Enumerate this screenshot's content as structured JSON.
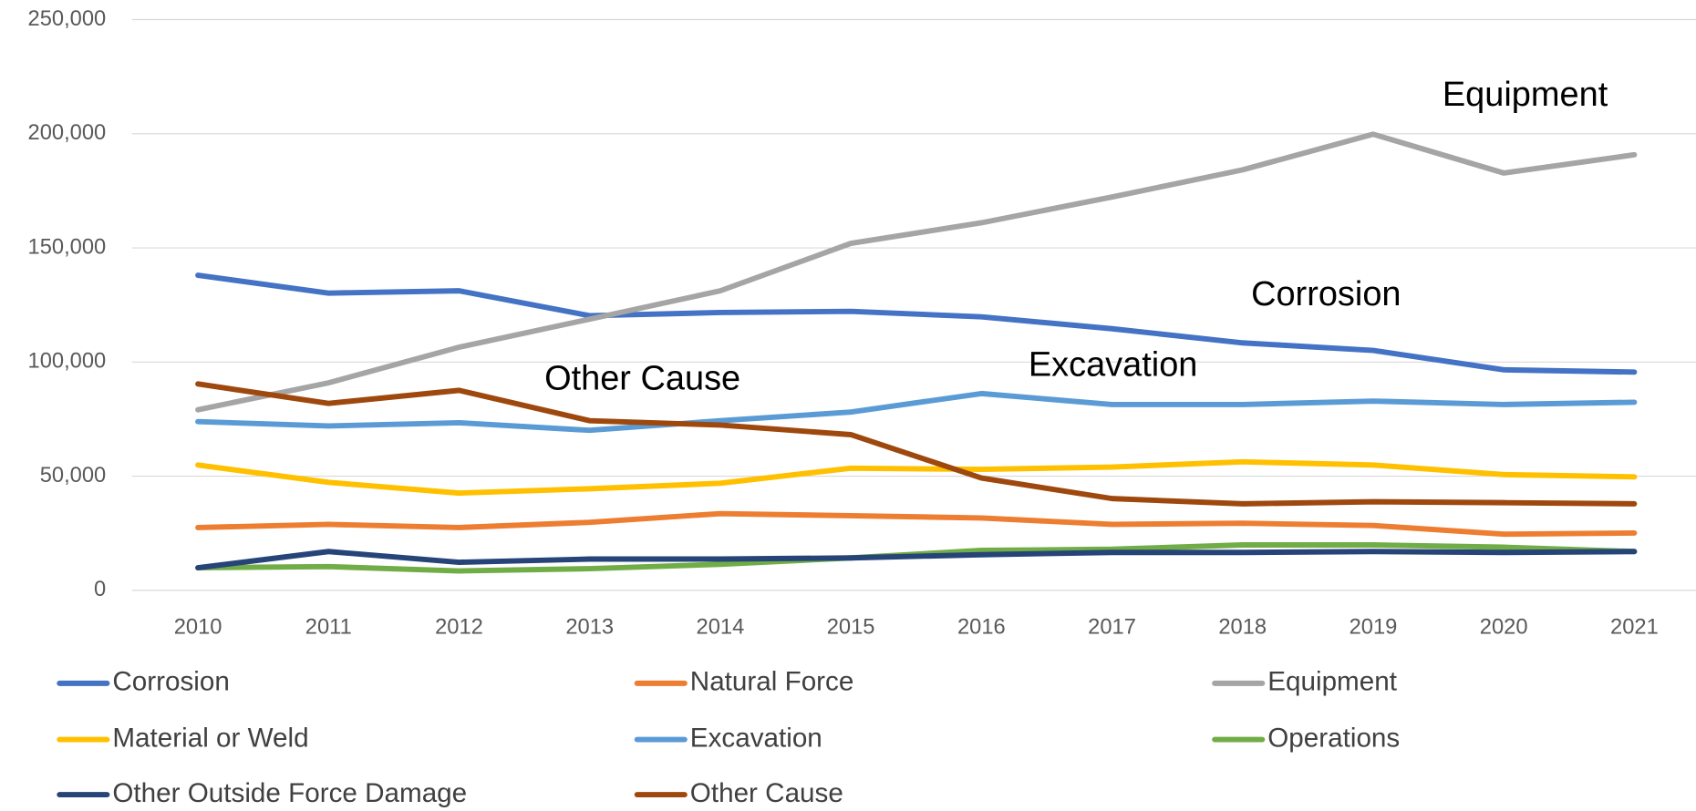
{
  "chart_data": {
    "type": "line",
    "categories": [
      "2010",
      "2011",
      "2012",
      "2013",
      "2014",
      "2015",
      "2016",
      "2017",
      "2018",
      "2019",
      "2020",
      "2021"
    ],
    "ylim": [
      0,
      250000
    ],
    "yticks": [
      0,
      {
        "value": 50000,
        "label": "50,000"
      },
      {
        "value": 100000,
        "label": "100,000"
      },
      {
        "value": 150000,
        "label": "150,000"
      },
      {
        "value": 200000,
        "label": "200,000"
      },
      {
        "value": 250000,
        "label": "250,000"
      }
    ],
    "grid": true,
    "legend": "bottom",
    "annotations": [
      "Equipment",
      "Corrosion",
      "Excavation",
      "Other Cause"
    ],
    "series": [
      {
        "name": "Corrosion",
        "color": "#4472c4",
        "values": [
          138000,
          130200,
          131200,
          120300,
          121700,
          122200,
          119800,
          114600,
          108400,
          105100,
          96600,
          95600
        ]
      },
      {
        "name": "Natural Force",
        "color": "#ed7d31",
        "values": [
          27500,
          28900,
          27500,
          29800,
          33600,
          32700,
          31700,
          28900,
          29400,
          28400,
          24600,
          25100
        ]
      },
      {
        "name": "Equipment",
        "color": "#a5a5a5",
        "values": [
          79100,
          90900,
          106500,
          118800,
          131200,
          152000,
          161000,
          172300,
          184200,
          199800,
          182800,
          190800
        ]
      },
      {
        "name": "Material or Weld",
        "color": "#ffc000",
        "values": [
          54900,
          47300,
          42600,
          44500,
          46900,
          53500,
          53000,
          54000,
          56300,
          54900,
          50700,
          49700
        ]
      },
      {
        "name": "Excavation",
        "color": "#5b9bd5",
        "values": [
          73900,
          72000,
          73400,
          70100,
          74300,
          78100,
          86200,
          81400,
          81400,
          82900,
          81400,
          82400
        ]
      },
      {
        "name": "Operations",
        "color": "#70ad47",
        "values": [
          9900,
          10400,
          8500,
          9500,
          11400,
          14200,
          17500,
          18000,
          19900,
          19900,
          18900,
          17000
        ]
      },
      {
        "name": "Other Outside Force Damage",
        "color": "#264478",
        "values": [
          9900,
          17000,
          12300,
          13700,
          13700,
          14200,
          15600,
          16600,
          16600,
          17000,
          16600,
          17000
        ]
      },
      {
        "name": "Other Cause",
        "color": "#9e480e",
        "values": [
          90400,
          81900,
          87600,
          74300,
          72400,
          68200,
          49200,
          40200,
          37900,
          38800,
          38400,
          37900
        ]
      }
    ]
  }
}
